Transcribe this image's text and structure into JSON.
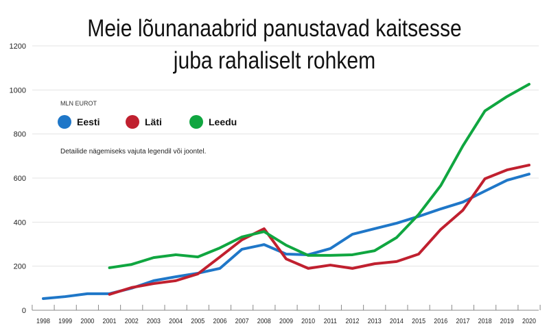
{
  "chart_data": {
    "type": "line",
    "title": "Meie lõunanaabrid panustavad kaitsesse juba rahaliselt rohkem",
    "title_lines": [
      "Meie lõunanaabrid panustavad kaitsesse",
      "juba rahaliselt rohkem"
    ],
    "unit_label": "MLN EUROT",
    "note": "Detailide nägemiseks vajuta legendil või joontel.",
    "x": [
      1998,
      1999,
      2000,
      2001,
      2002,
      2003,
      2004,
      2005,
      2006,
      2007,
      2008,
      2009,
      2010,
      2011,
      2012,
      2013,
      2014,
      2015,
      2016,
      2017,
      2018,
      2019,
      2020
    ],
    "ylim": [
      0,
      1200
    ],
    "yticks": [
      0,
      200,
      400,
      600,
      800,
      1000,
      1200
    ],
    "grid": true,
    "legend_placement": "top-left",
    "series": [
      {
        "name": "Eesti",
        "color": "#1f77c8",
        "values": [
          53,
          62,
          75,
          75,
          100,
          134,
          152,
          168,
          190,
          277,
          298,
          255,
          252,
          280,
          345,
          370,
          395,
          426,
          460,
          491,
          541,
          590,
          618
        ]
      },
      {
        "name": "Läti",
        "color": "#c0202f",
        "values": [
          null,
          null,
          null,
          72,
          103,
          121,
          134,
          165,
          242,
          320,
          370,
          233,
          190,
          205,
          190,
          211,
          221,
          255,
          367,
          454,
          597,
          637,
          659
        ]
      },
      {
        "name": "Leedu",
        "color": "#10a640",
        "values": [
          null,
          null,
          null,
          193,
          208,
          239,
          252,
          242,
          283,
          333,
          357,
          295,
          249,
          249,
          252,
          270,
          330,
          435,
          566,
          746,
          905,
          970,
          1026
        ]
      }
    ]
  }
}
